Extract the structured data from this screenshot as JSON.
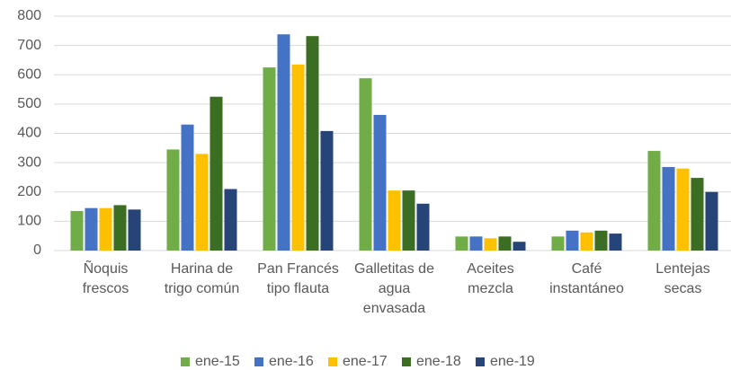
{
  "chart_data": {
    "type": "bar",
    "categories": [
      "Ñoquis frescos",
      "Harina de trigo común",
      "Pan Francés tipo flauta",
      "Galletitas de agua envasada",
      "Aceites mezcla",
      "Café instantáneo",
      "Lentejas secas"
    ],
    "series": [
      {
        "name": "ene-15",
        "color": "#70ad47",
        "values": [
          135,
          345,
          625,
          588,
          48,
          48,
          340
        ]
      },
      {
        "name": "ene-16",
        "color": "#4472c4",
        "values": [
          145,
          430,
          738,
          463,
          48,
          68,
          285
        ]
      },
      {
        "name": "ene-17",
        "color": "#ffc000",
        "values": [
          145,
          330,
          635,
          205,
          42,
          62,
          280
        ]
      },
      {
        "name": "ene-18",
        "color": "#3b6e22",
        "values": [
          155,
          525,
          732,
          205,
          48,
          68,
          248
        ]
      },
      {
        "name": "ene-19",
        "color": "#264478",
        "values": [
          140,
          210,
          408,
          160,
          30,
          58,
          200
        ]
      }
    ],
    "ylim": [
      0,
      800
    ],
    "yticks": [
      0,
      100,
      200,
      300,
      400,
      500,
      600,
      700,
      800
    ],
    "grid": true,
    "legend": "bottom"
  }
}
